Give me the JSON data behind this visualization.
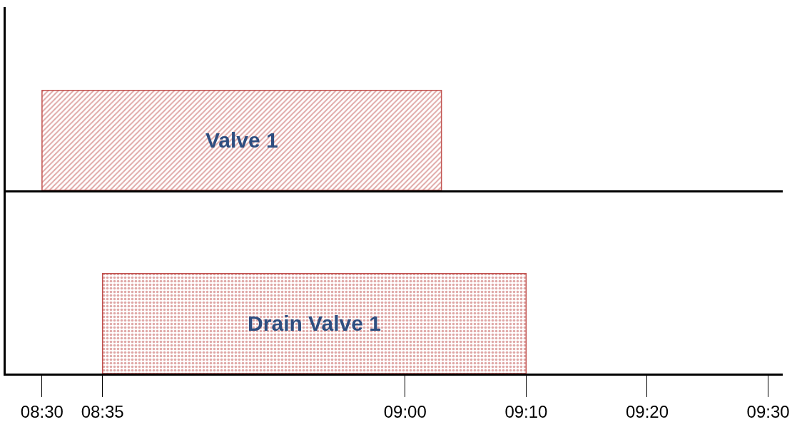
{
  "chart_data": [
    {
      "type": "bar",
      "orientation": "horizontal",
      "categories": [
        null
      ],
      "base": [
        8.5
      ],
      "values": [
        0.55
      ],
      "value_labels": [
        "Valve 1"
      ],
      "colors": [
        "#c0504d"
      ],
      "xlim": [
        8.45,
        9.52
      ],
      "tick_labels": false
    },
    {
      "type": "bar",
      "orientation": "horizontal",
      "categories": [
        null
      ],
      "base": [
        8.5833
      ],
      "values": [
        0.5833
      ],
      "value_labels": [
        "Drain Valve 1"
      ],
      "colors": [
        "#c0504d"
      ],
      "xlim": [
        8.45,
        9.52
      ],
      "xticks": [
        {
          "value": 8.5,
          "label": "08:30"
        },
        {
          "value": 8.5833,
          "label": "08:35"
        },
        {
          "value": 9.0,
          "label": "09:00"
        },
        {
          "value": 9.1667,
          "label": "09:10"
        },
        {
          "value": 9.3333,
          "label": "09:20"
        },
        {
          "value": 9.5,
          "label": "09:30"
        }
      ],
      "tick_labels": "x"
    }
  ]
}
